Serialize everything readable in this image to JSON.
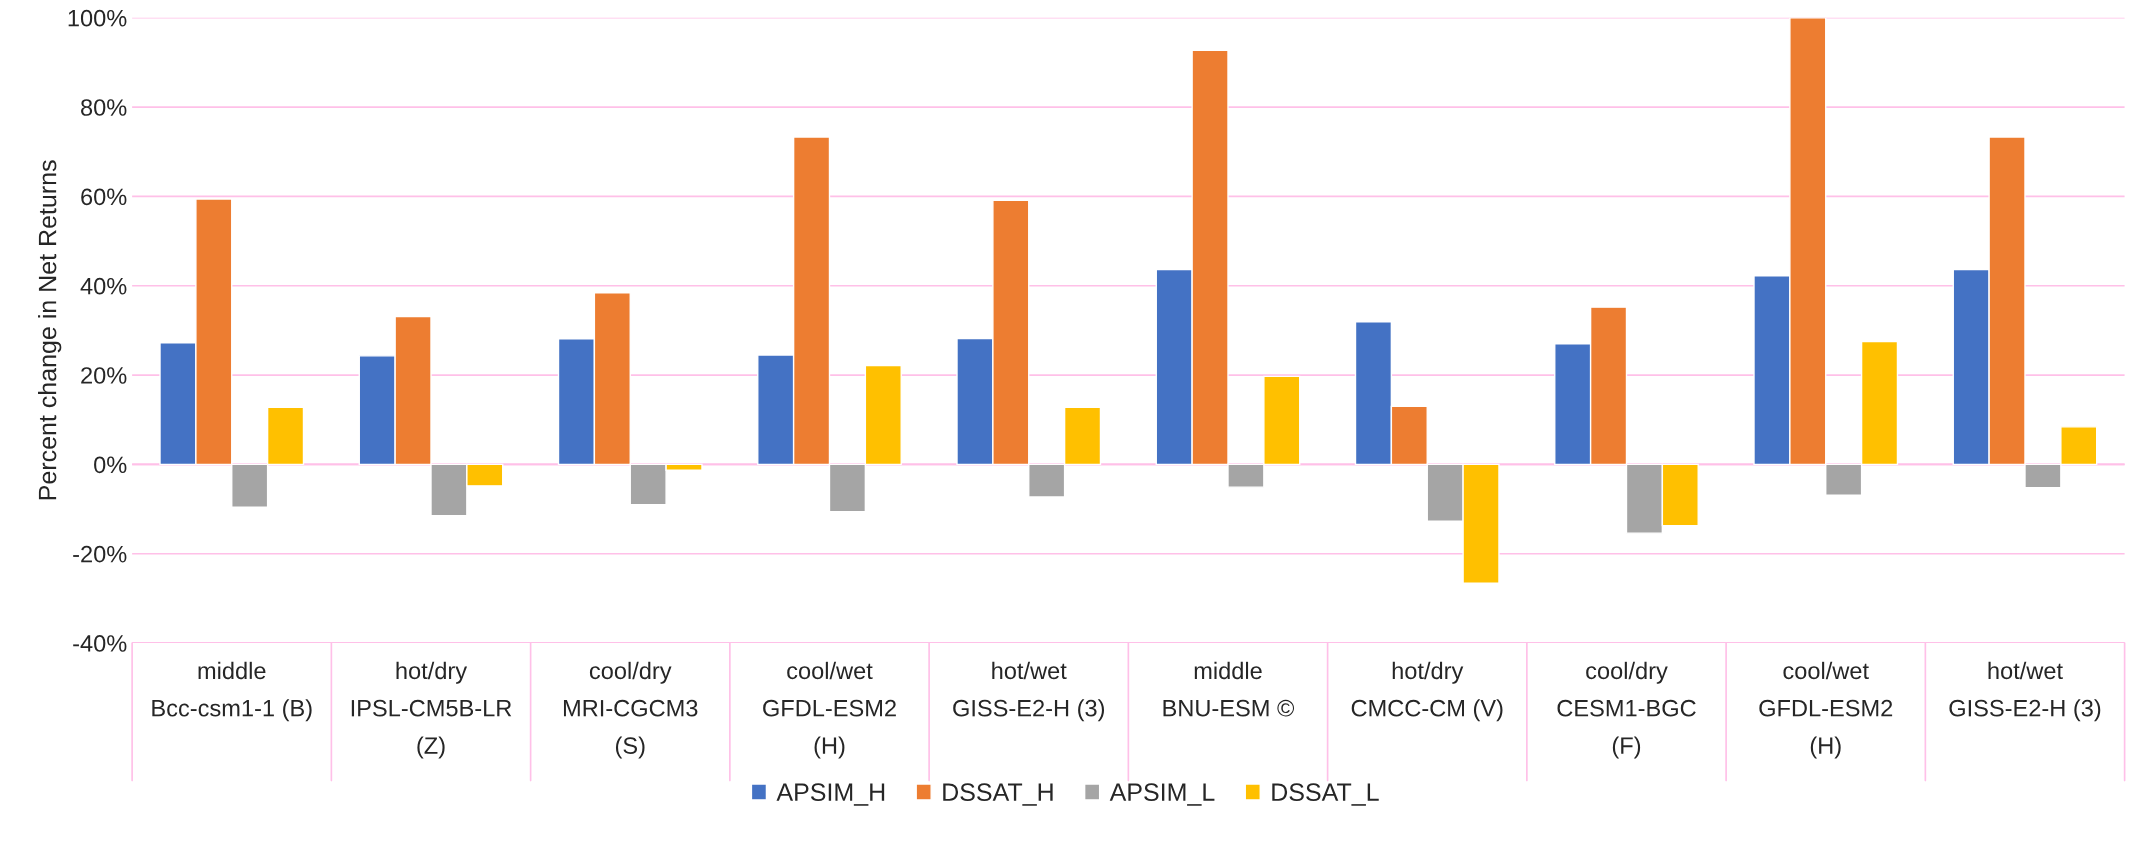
{
  "chart_data": {
    "type": "bar",
    "ylabel": "Percent change in Net Returns",
    "categories": [
      "middle\nBcc-csm1-1 (B)",
      "hot/dry\nIPSL-CM5B-LR\n(Z)",
      "cool/dry\nMRI-CGCM3\n(S)",
      "cool/wet\nGFDL-ESM2\n(H)",
      "hot/wet\nGISS-E2-H (3)",
      "middle\nBNU-ESM ©",
      "hot/dry\nCMCC-CM (V)",
      "cool/dry\nCESM1-BGC\n(F)",
      "cool/wet\nGFDL-ESM2\n(H)",
      "hot/wet\nGISS-E2-H (3)"
    ],
    "series": [
      {
        "name": "APSIM_H",
        "color": "#4472c4",
        "values": [
          27.2,
          24.3,
          28.1,
          24.5,
          28.2,
          43.6,
          31.9,
          27.0,
          42.2,
          43.6
        ]
      },
      {
        "name": "DSSAT_H",
        "color": "#ed7d31",
        "values": [
          59.4,
          33.1,
          38.4,
          73.3,
          59.1,
          92.7,
          13.0,
          35.2,
          100,
          73.3
        ]
      },
      {
        "name": "APSIM_L",
        "color": "#a5a5a5",
        "values": [
          -9.6,
          -11.5,
          -9.0,
          -10.6,
          -7.3,
          -5.1,
          -12.7,
          -15.4,
          -6.9,
          -5.2
        ]
      },
      {
        "name": "DSSAT_L",
        "color": "#ffc000",
        "values": [
          12.8,
          -4.8,
          -1.3,
          22.1,
          12.8,
          19.7,
          -26.6,
          -13.7,
          27.5,
          8.4
        ]
      }
    ],
    "ylim": [
      -40,
      100
    ],
    "yticks": [
      {
        "value": -40,
        "label": "-40%"
      },
      {
        "value": -20,
        "label": "-20%"
      },
      {
        "value": 0,
        "label": "0%"
      },
      {
        "value": 20,
        "label": "20%"
      },
      {
        "value": 40,
        "label": "40%"
      },
      {
        "value": 60,
        "label": "60%"
      },
      {
        "value": 80,
        "label": "80%"
      },
      {
        "value": 100,
        "label": "100%"
      }
    ],
    "grid": "y",
    "legend": "bottom"
  }
}
